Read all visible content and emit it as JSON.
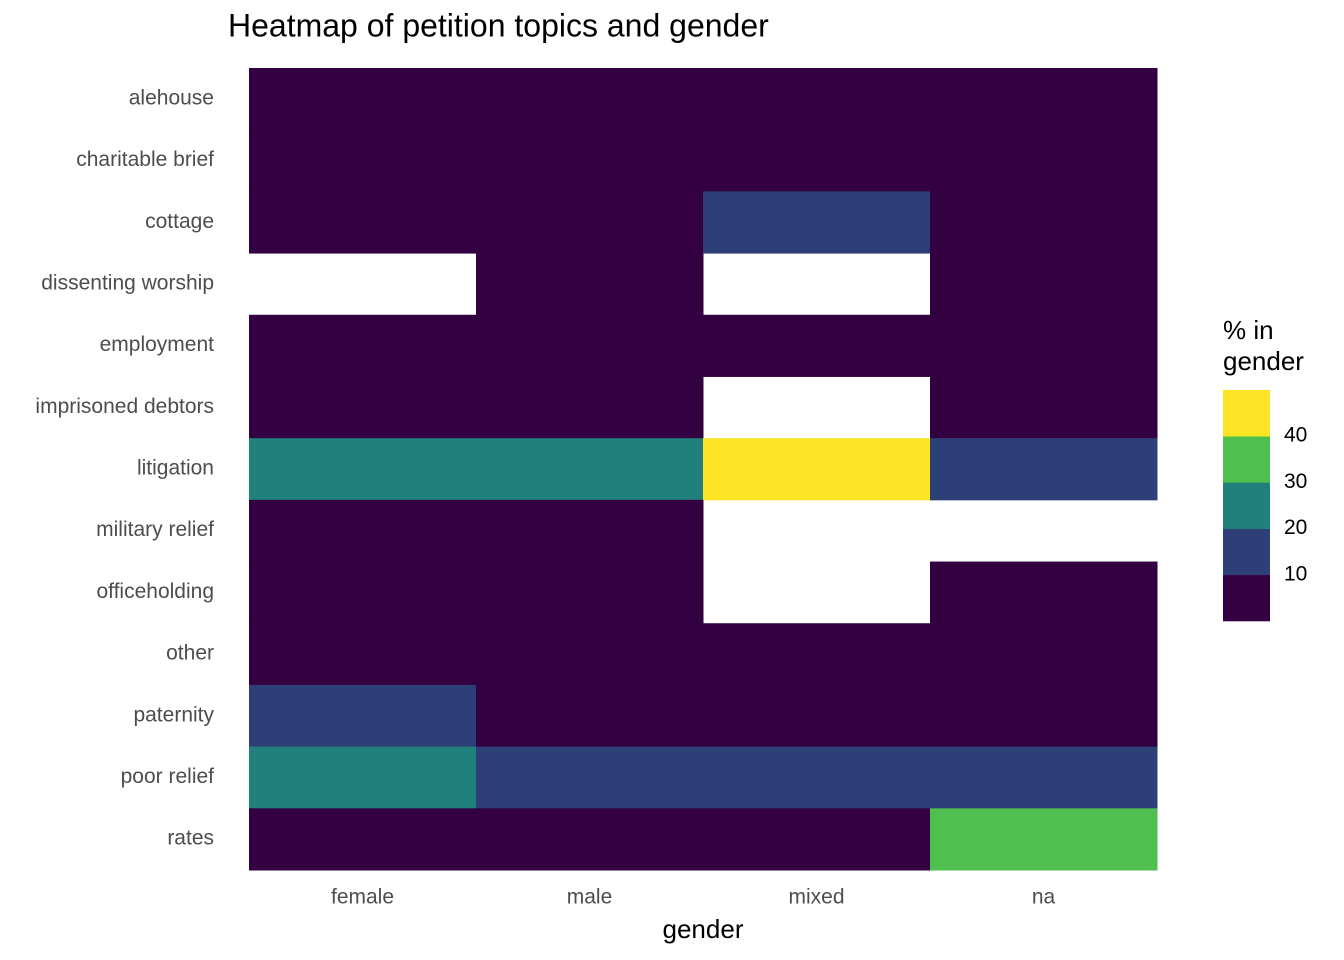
{
  "chart_data": {
    "type": "heatmap",
    "title": "Heatmap of petition topics and gender",
    "x_label": "gender",
    "legend_title": [
      "% in",
      "gender"
    ],
    "x": [
      "female",
      "male",
      "mixed",
      "na"
    ],
    "y": [
      "alehouse",
      "charitable brief",
      "cottage",
      "dissenting worship",
      "employment",
      "imprisoned debtors",
      "litigation",
      "military relief",
      "officeholding",
      "other",
      "paternity",
      "poor relief",
      "rates"
    ],
    "values": [
      [
        3,
        3,
        3,
        3
      ],
      [
        3,
        3,
        3,
        3
      ],
      [
        3,
        3,
        15,
        3
      ],
      [
        null,
        3,
        null,
        3
      ],
      [
        3,
        3,
        3,
        3
      ],
      [
        3,
        3,
        null,
        3
      ],
      [
        25,
        25,
        45,
        15
      ],
      [
        3,
        3,
        null,
        null
      ],
      [
        3,
        3,
        null,
        3
      ],
      [
        3,
        3,
        3,
        3
      ],
      [
        15,
        3,
        3,
        3
      ],
      [
        25,
        15,
        15,
        15
      ],
      [
        3,
        3,
        3,
        35
      ]
    ],
    "legend_breaks": [
      10,
      20,
      30,
      40
    ],
    "colors": [
      "#330042",
      "#2d3f77",
      "#21807b",
      "#4fbf4f",
      "#fde525"
    ]
  }
}
